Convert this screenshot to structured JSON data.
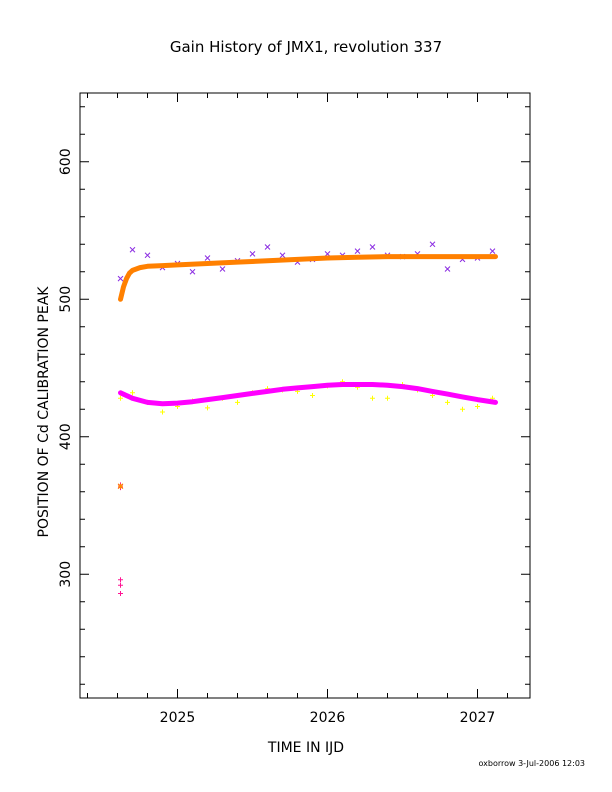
{
  "chart_data": {
    "type": "scatter",
    "title": "Gain History of JMX1, revolution 337",
    "xlabel": "TIME IN IJD",
    "ylabel": "POSITION OF Cd CALIBRATION PEAK",
    "xlim": [
      2024.35,
      2027.35
    ],
    "ylim": [
      210,
      650
    ],
    "x_ticks": [
      2025,
      2026,
      2027
    ],
    "y_ticks": [
      300,
      400,
      500,
      600
    ],
    "grid": false,
    "series": [
      {
        "marker": "x",
        "color": "#8a2be2",
        "x": [
          2024.62,
          2024.7,
          2024.8,
          2024.9,
          2025.0,
          2025.1,
          2025.2,
          2025.3,
          2025.4,
          2025.5,
          2025.6,
          2025.7,
          2025.8,
          2025.9,
          2026.0,
          2026.1,
          2026.2,
          2026.3,
          2026.4,
          2026.5,
          2026.6,
          2026.7,
          2026.8,
          2026.9,
          2027.0,
          2027.1
        ],
        "y": [
          515,
          536,
          532,
          523,
          526,
          520,
          530,
          522,
          528,
          533,
          538,
          532,
          527,
          529,
          533,
          532,
          535,
          538,
          532,
          531,
          533,
          540,
          522,
          529,
          530,
          535
        ]
      },
      {
        "marker": "+",
        "color": "#ffff00",
        "x": [
          2024.62,
          2024.7,
          2024.8,
          2024.9,
          2025.0,
          2025.1,
          2025.2,
          2025.3,
          2025.4,
          2025.5,
          2025.6,
          2025.7,
          2025.8,
          2025.9,
          2026.0,
          2026.1,
          2026.2,
          2026.3,
          2026.4,
          2026.5,
          2026.6,
          2026.7,
          2026.8,
          2026.9,
          2027.0,
          2027.1
        ],
        "y": [
          428,
          432,
          425,
          418,
          422,
          426,
          421,
          428,
          425,
          432,
          435,
          434,
          433,
          430,
          437,
          440,
          436,
          428,
          428,
          438,
          434,
          430,
          425,
          420,
          422,
          428
        ]
      },
      {
        "marker": "+",
        "color": "#ff1493",
        "x": [
          2024.62,
          2024.62,
          2024.62,
          2024.62,
          2024.62
        ],
        "y": [
          365,
          363,
          296,
          292,
          286
        ]
      },
      {
        "marker": "*",
        "color": "#ff8c00",
        "x": [
          2024.62
        ],
        "y": [
          364
        ]
      },
      {
        "type": "line",
        "color": "#ff8000",
        "x": [
          2024.62,
          2024.64,
          2024.66,
          2024.68,
          2024.7,
          2024.75,
          2024.8,
          2024.9,
          2025.0,
          2025.2,
          2025.4,
          2025.6,
          2025.8,
          2026.0,
          2026.2,
          2026.4,
          2026.6,
          2026.8,
          2027.0,
          2027.12
        ],
        "y": [
          500,
          509,
          515,
          519,
          521,
          523,
          524,
          524.5,
          525,
          526,
          527,
          528,
          529,
          530,
          530.5,
          531,
          531,
          531,
          531,
          531
        ]
      },
      {
        "type": "line",
        "color": "#ff00ff",
        "x": [
          2024.62,
          2024.7,
          2024.8,
          2024.9,
          2025.0,
          2025.1,
          2025.2,
          2025.3,
          2025.4,
          2025.5,
          2025.6,
          2025.7,
          2025.8,
          2025.9,
          2026.0,
          2026.1,
          2026.2,
          2026.3,
          2026.4,
          2026.5,
          2026.6,
          2026.7,
          2026.8,
          2026.9,
          2027.0,
          2027.12
        ],
        "y": [
          432,
          428,
          425,
          424,
          424.5,
          425.5,
          427,
          428.5,
          430,
          431.5,
          433,
          434.5,
          435.5,
          436.5,
          437.5,
          438,
          438,
          438,
          437.5,
          436.5,
          435,
          433,
          431,
          429,
          427,
          425
        ]
      }
    ]
  },
  "footer": "oxborrow  3-Jul-2006 12:03"
}
